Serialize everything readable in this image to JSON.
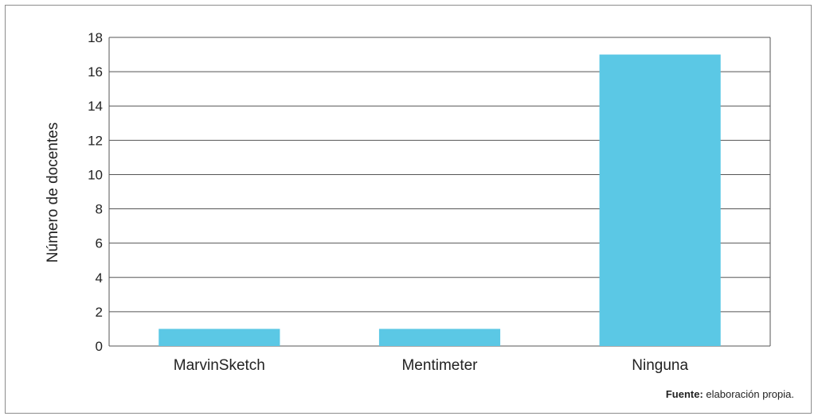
{
  "chart_data": {
    "type": "bar",
    "categories": [
      "MarvinSketch",
      "Mentimeter",
      "Ninguna"
    ],
    "values": [
      1,
      1,
      17
    ],
    "ylabel": "Número de docentes",
    "xlabel": "",
    "ylim": [
      0,
      18
    ],
    "yticks": [
      0,
      2,
      4,
      6,
      8,
      10,
      12,
      14,
      16,
      18
    ],
    "grid": true,
    "bar_color": "#5bc8e5"
  },
  "source": {
    "label": "Fuente:",
    "text": " elaboración propia."
  }
}
